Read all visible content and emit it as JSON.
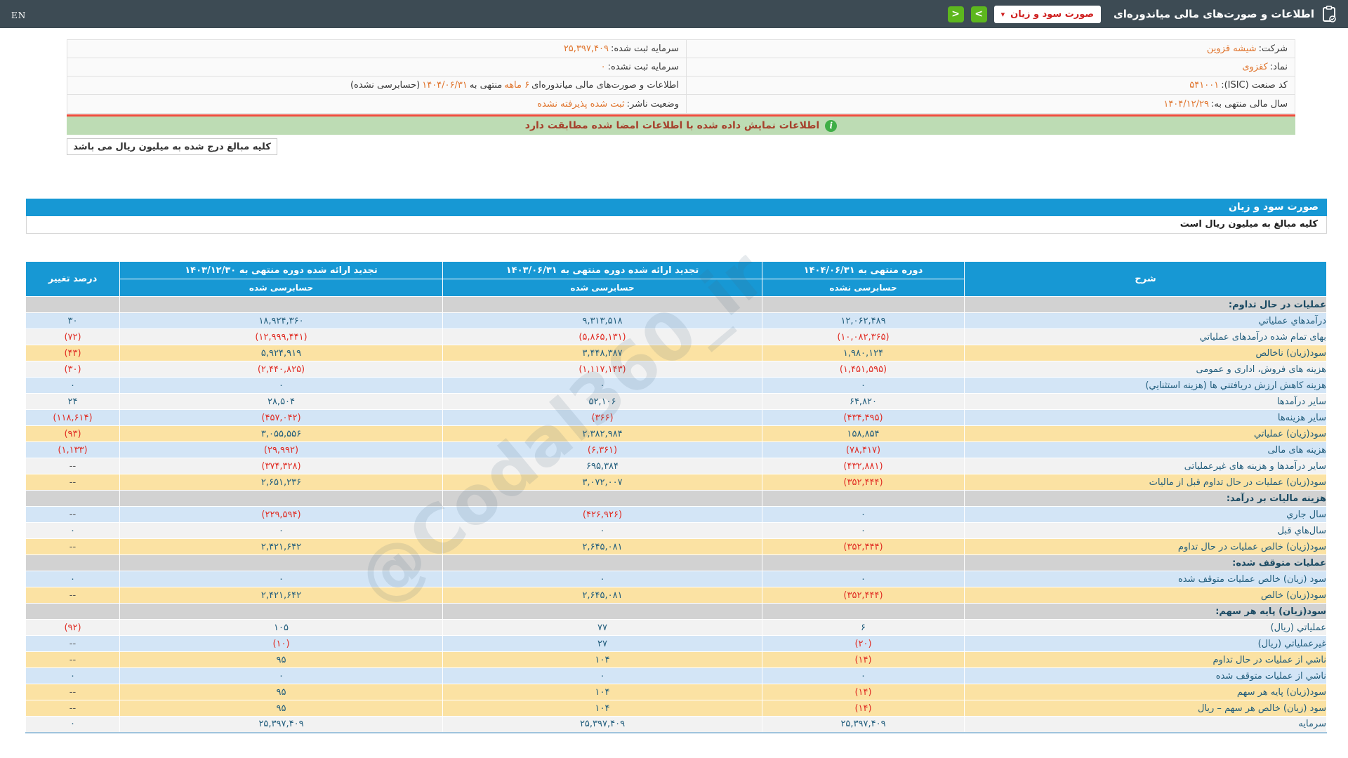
{
  "header": {
    "title": "اطلاعات و صورت‌های مالی میاندوره‌ای",
    "dropdown_value": "صورت سود و زیان",
    "chevron_down": "▾",
    "chevron_right": ">",
    "chevron_left": "<",
    "lang_toggle": "EN"
  },
  "info": {
    "rows": [
      {
        "right": [
          {
            "t": "شرکت: ",
            "hl": false
          },
          {
            "t": "شیشه قزوین",
            "hl": true
          }
        ],
        "left": [
          {
            "t": "سرمایه ثبت شده: ",
            "hl": false
          },
          {
            "t": "۲۵,۳۹۷,۴۰۹",
            "hl": true
          }
        ]
      },
      {
        "right": [
          {
            "t": "نماد: ",
            "hl": false
          },
          {
            "t": "کقزوی",
            "hl": true
          }
        ],
        "left": [
          {
            "t": "سرمایه ثبت نشده: ",
            "hl": false
          },
          {
            "t": "۰",
            "hl": true
          }
        ]
      },
      {
        "right": [
          {
            "t": "کد صنعت (ISIC): ",
            "hl": false
          },
          {
            "t": "۵۴۱۰۰۱",
            "hl": true
          }
        ],
        "left": [
          {
            "t": "اطلاعات و صورت‌های مالی میاندوره‌ای ",
            "hl": false
          },
          {
            "t": "۶ ماهه",
            "hl": true
          },
          {
            "t": "منتهی به ",
            "hl": false
          },
          {
            "t": "۱۴۰۴/۰۶/۳۱",
            "hl": true
          },
          {
            "t": "(حسابرسی نشده)",
            "hl": false
          }
        ]
      },
      {
        "right": [
          {
            "t": "سال مالی منتهی به: ",
            "hl": false
          },
          {
            "t": "۱۴۰۴/۱۲/۲۹",
            "hl": true
          }
        ],
        "left": [
          {
            "t": "وضعیت ناشر: ",
            "hl": false
          },
          {
            "t": "ثبت شده پذیرفته نشده",
            "hl": true
          }
        ]
      }
    ]
  },
  "alert": {
    "text": "اطلاعات نمایش داده شده با اطلاعات امضا شده مطابقت دارد",
    "icon_glyph": "i"
  },
  "notes": {
    "units_box": "کلیه مبالغ درج شده به میلیون ریال می باشد"
  },
  "statement": {
    "title": "صورت سود و زیان",
    "units_note": "کلیه مبالغ به میلیون ریال است"
  },
  "table": {
    "header": {
      "desc": "شرح",
      "col_current": {
        "title": "دوره منتهی به ۱۴۰۴/۰۶/۳۱",
        "audit": "حسابرسی نشده"
      },
      "col_restated_6m": {
        "title": "تجدید ارائه شده دوره منتهی به ۱۴۰۳/۰۶/۳۱",
        "audit": "حسابرسی شده"
      },
      "col_restated_annual": {
        "title": "تجدید ارائه شده دوره منتهی به ۱۴۰۳/۱۲/۳۰",
        "audit": "حسابرسی شده"
      },
      "percent": "درصد تغییر"
    },
    "rows": [
      {
        "type": "section",
        "label": "عملیات در حال تداوم:"
      },
      {
        "type": "data",
        "bg": "blue",
        "label": "درآمدهاي عملياتي",
        "v1": "۱۲,۰۶۲,۴۸۹",
        "v2": "۹,۳۱۳,۵۱۸",
        "v3": "۱۸,۹۲۴,۳۶۰",
        "pct": "۳۰"
      },
      {
        "type": "data",
        "bg": "white",
        "label": "بهای تمام شده درآمدهای عملیاتي",
        "v1": "(۱۰,۰۸۲,۳۶۵)",
        "v2": "(۵,۸۶۵,۱۳۱)",
        "v3": "(۱۲,۹۹۹,۴۴۱)",
        "pct": "(۷۲)"
      },
      {
        "type": "data",
        "bg": "yellow",
        "label": "سود(زیان) ناخالص",
        "v1": "۱,۹۸۰,۱۲۴",
        "v2": "۳,۴۴۸,۳۸۷",
        "v3": "۵,۹۲۴,۹۱۹",
        "pct": "(۴۳)"
      },
      {
        "type": "data",
        "bg": "white",
        "label": "هزینه های فروش، اداری و عمومی",
        "v1": "(۱,۴۵۱,۵۹۵)",
        "v2": "(۱,۱۱۷,۱۴۳)",
        "v3": "(۲,۴۴۰,۸۲۵)",
        "pct": "(۳۰)"
      },
      {
        "type": "data",
        "bg": "blue",
        "label": "هزینه کاهش ارزش دریافتني ها (هزینه استثنایي)",
        "v1": "۰",
        "v2": "۰",
        "v3": "۰",
        "pct": "۰"
      },
      {
        "type": "data",
        "bg": "white",
        "label": "سایر درآمدها",
        "v1": "۶۴,۸۲۰",
        "v2": "۵۲,۱۰۶",
        "v3": "۲۸,۵۰۴",
        "pct": "۲۴"
      },
      {
        "type": "data",
        "bg": "blue",
        "label": "سایر هزینه‌ها",
        "v1": "(۴۳۴,۴۹۵)",
        "v2": "(۳۶۶)",
        "v3": "(۴۵۷,۰۴۲)",
        "pct": "(۱۱۸,۶۱۴)"
      },
      {
        "type": "data",
        "bg": "yellow",
        "label": "سود(زیان) عملیاتي",
        "v1": "۱۵۸,۸۵۴",
        "v2": "۲,۳۸۲,۹۸۴",
        "v3": "۳,۰۵۵,۵۵۶",
        "pct": "(۹۳)"
      },
      {
        "type": "data",
        "bg": "blue",
        "label": "هزینه های مالی",
        "v1": "(۷۸,۴۱۷)",
        "v2": "(۶,۳۶۱)",
        "v3": "(۲۹,۹۹۲)",
        "pct": "(۱,۱۳۳)"
      },
      {
        "type": "data",
        "bg": "white",
        "label": "سایر درآمدها و هزینه های غیرعملیاتی",
        "v1": "(۴۳۲,۸۸۱)",
        "v2": "۶۹۵,۳۸۴",
        "v3": "(۳۷۴,۳۲۸)",
        "pct": "--"
      },
      {
        "type": "data",
        "bg": "yellow",
        "label": "سود(زیان) عملیات در حال تداوم قبل از مالیات",
        "v1": "(۳۵۲,۴۴۴)",
        "v2": "۳,۰۷۲,۰۰۷",
        "v3": "۲,۶۵۱,۲۳۶",
        "pct": "--"
      },
      {
        "type": "section",
        "label": "هزینه مالیات بر درآمد:"
      },
      {
        "type": "data",
        "bg": "blue",
        "label": "سال جاري",
        "v1": "۰",
        "v2": "(۴۲۶,۹۲۶)",
        "v3": "(۲۲۹,۵۹۴)",
        "pct": "--"
      },
      {
        "type": "data",
        "bg": "white",
        "label": "سال‌هاي قبل",
        "v1": "۰",
        "v2": "۰",
        "v3": "۰",
        "pct": "۰"
      },
      {
        "type": "data",
        "bg": "yellow",
        "label": "سود(زیان) خالص عملیات در حال تداوم",
        "v1": "(۳۵۲,۴۴۴)",
        "v2": "۲,۶۴۵,۰۸۱",
        "v3": "۲,۴۲۱,۶۴۲",
        "pct": "--"
      },
      {
        "type": "section",
        "label": "عملیات متوقف شده:"
      },
      {
        "type": "data",
        "bg": "blue",
        "label": "سود (زیان) خالص عملیات متوقف شده",
        "v1": "۰",
        "v2": "۰",
        "v3": "۰",
        "pct": "۰"
      },
      {
        "type": "data",
        "bg": "yellow",
        "label": "سود(زیان) خالص",
        "v1": "(۳۵۲,۴۴۴)",
        "v2": "۲,۶۴۵,۰۸۱",
        "v3": "۲,۴۲۱,۶۴۲",
        "pct": "--"
      },
      {
        "type": "section",
        "label": "سود(زیان) پایه هر سهم:"
      },
      {
        "type": "data",
        "bg": "white",
        "label": "عملیاتي (ریال)",
        "v1": "۶",
        "v2": "۷۷",
        "v3": "۱۰۵",
        "pct": "(۹۲)"
      },
      {
        "type": "data",
        "bg": "blue",
        "label": "غیرعملیاتي (ریال)",
        "v1": "(۲۰)",
        "v2": "۲۷",
        "v3": "(۱۰)",
        "pct": "--"
      },
      {
        "type": "data",
        "bg": "yellow",
        "label": "ناشي از عملیات در حال تداوم",
        "v1": "(۱۴)",
        "v2": "۱۰۴",
        "v3": "۹۵",
        "pct": "--"
      },
      {
        "type": "data",
        "bg": "blue",
        "label": "ناشي از عملیات متوقف شده",
        "v1": "۰",
        "v2": "۰",
        "v3": "۰",
        "pct": "۰"
      },
      {
        "type": "data",
        "bg": "yellow",
        "label": "سود(زیان) پایه هر سهم",
        "v1": "(۱۴)",
        "v2": "۱۰۴",
        "v3": "۹۵",
        "pct": "--"
      },
      {
        "type": "data",
        "bg": "yellow",
        "label": "سود (زیان) خالص هر سهم – ریال",
        "v1": "(۱۴)",
        "v2": "۱۰۴",
        "v3": "۹۵",
        "pct": "--"
      },
      {
        "type": "data",
        "bg": "white",
        "label": "سرمایه",
        "v1": "۲۵,۳۹۷,۴۰۹",
        "v2": "۲۵,۳۹۷,۴۰۹",
        "v3": "۲۵,۳۹۷,۴۰۹",
        "pct": "۰"
      }
    ]
  },
  "watermark": {
    "text": "@Codal360_ir"
  }
}
